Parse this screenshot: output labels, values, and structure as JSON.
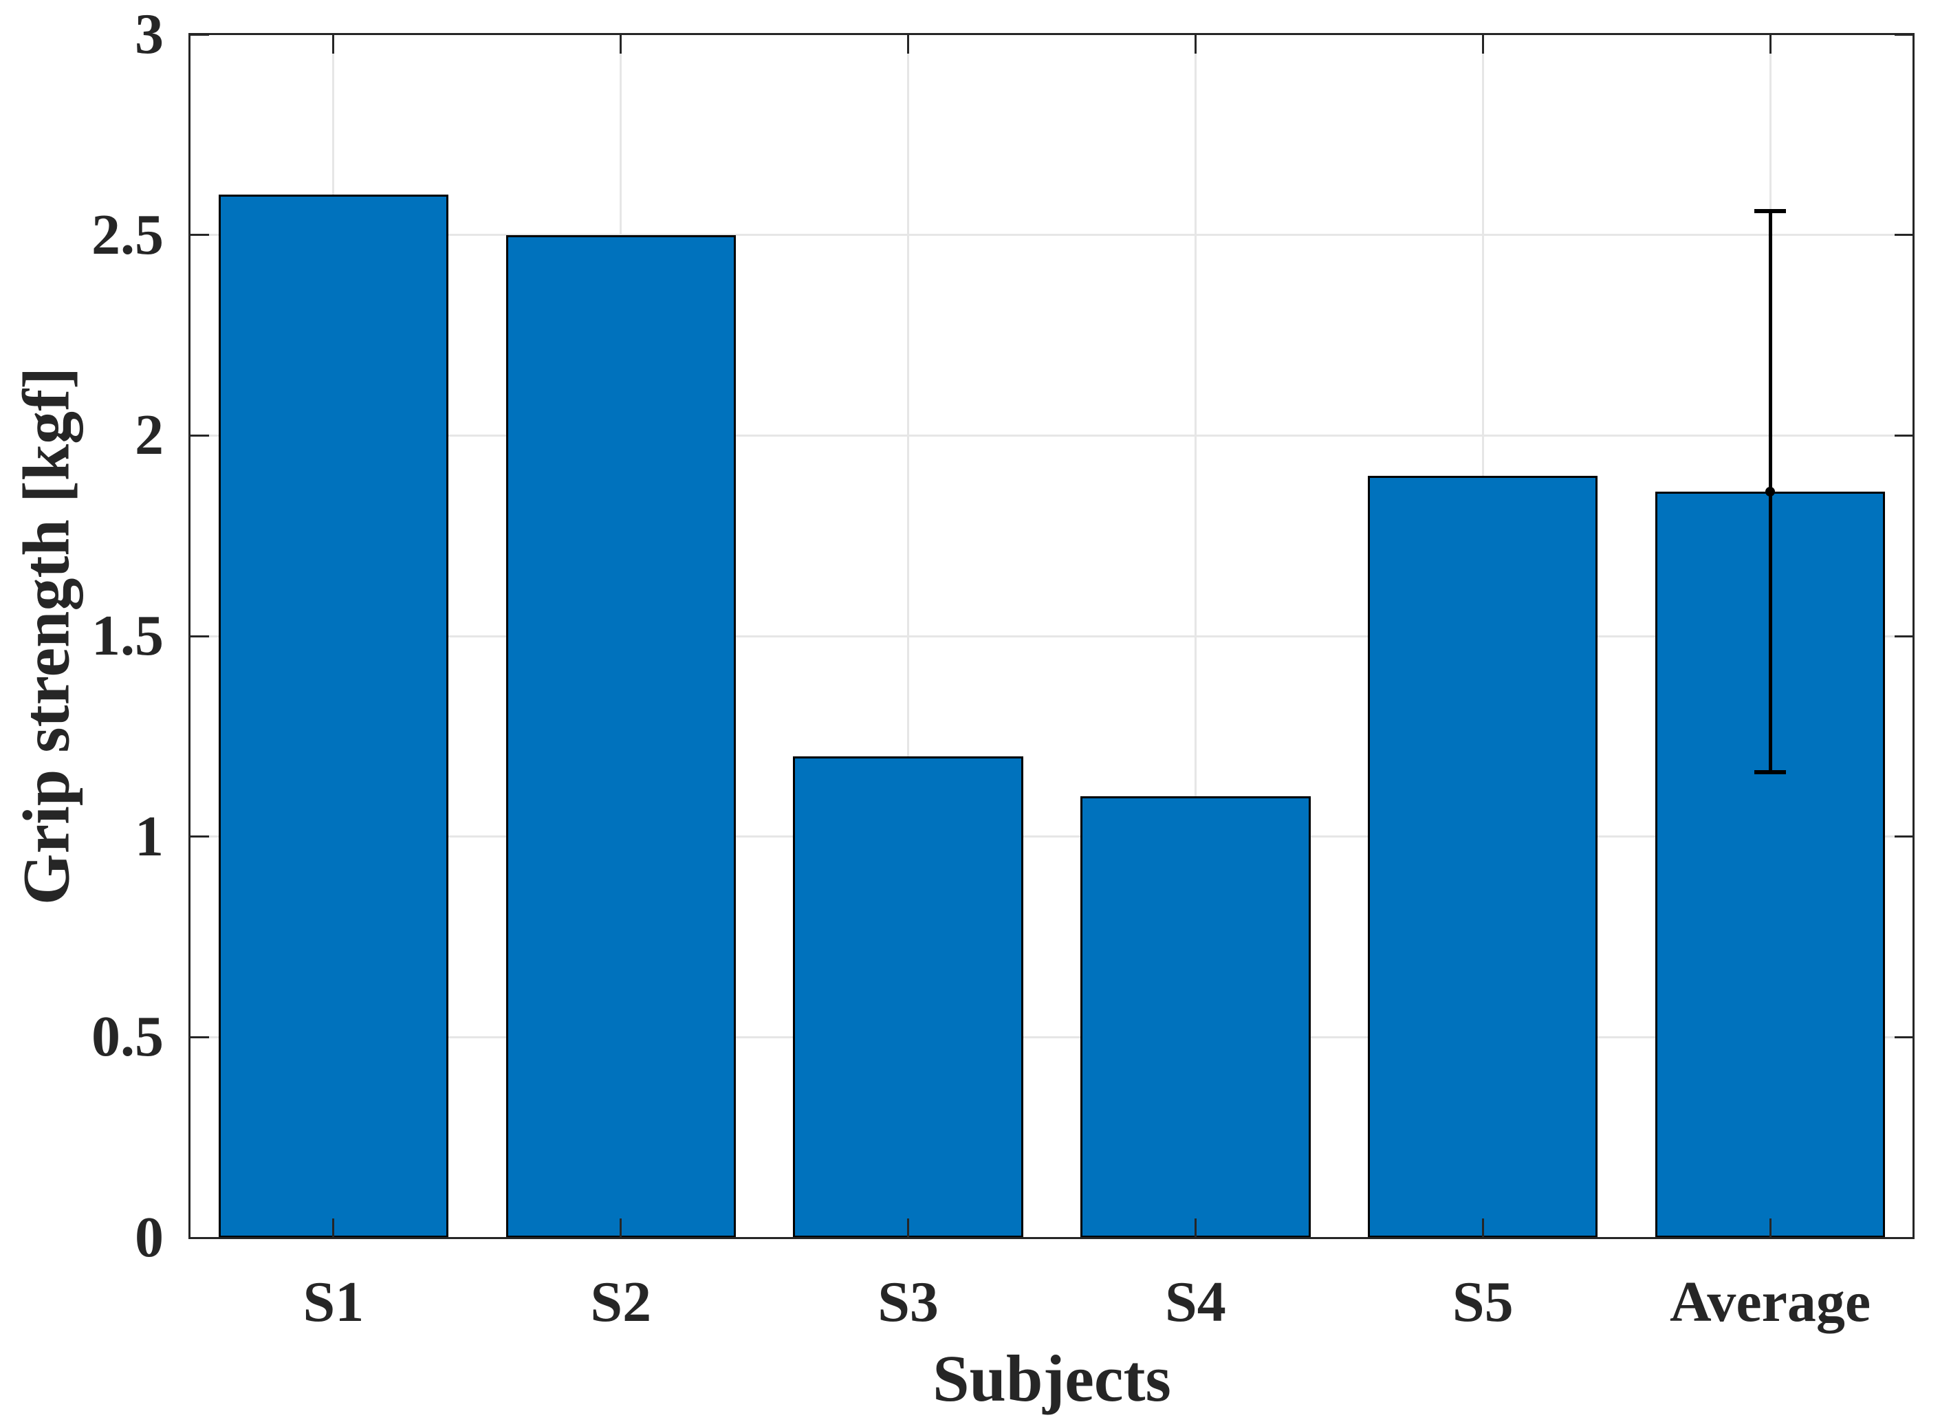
{
  "figure": {
    "background": "#FFFFFF"
  },
  "chart_data": {
    "type": "bar",
    "title": "",
    "xlabel": "Subjects",
    "ylabel": "Grip strength [kgf]",
    "categories": [
      "S1",
      "S2",
      "S3",
      "S4",
      "S5",
      "Average"
    ],
    "values": [
      2.6,
      2.5,
      1.2,
      1.1,
      1.9,
      1.86
    ],
    "bar_width_fraction": 0.8,
    "error_bars": [
      {
        "category": "Average",
        "value": 1.86,
        "error_plus": 0.7,
        "error_minus": 0.7,
        "upper": 2.56,
        "lower": 1.16
      }
    ],
    "ylim": [
      0,
      3
    ],
    "yticks": [
      0,
      0.5,
      1,
      1.5,
      2,
      2.5,
      3
    ],
    "ytick_labels": [
      "0",
      "0.5",
      "1",
      "1.5",
      "2",
      "2.5",
      "3"
    ],
    "grid": true,
    "grid_axes": "both",
    "tick_direction": "in",
    "box": true,
    "legend": false,
    "colors": {
      "bar_fill": "#0072BD",
      "bar_edge": "#000000",
      "grid": "#E6E6E6",
      "axis": "#262626",
      "text": "#262626",
      "errorbar": "#000000"
    }
  }
}
